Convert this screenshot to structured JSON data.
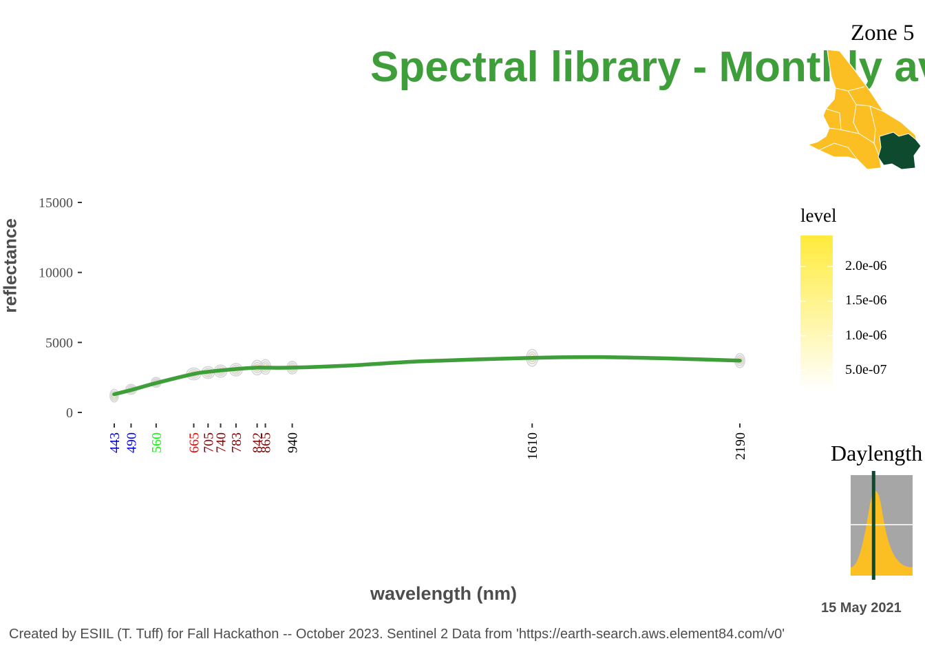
{
  "header": {
    "title": "Spectral library - Monthly av",
    "zone_label": "Zone 5"
  },
  "chart_data": {
    "type": "line",
    "title": "Spectral library - Monthly av",
    "xlabel": "wavelength (nm)",
    "ylabel": "reflectance",
    "ylim": [
      0,
      15000
    ],
    "y_ticks": [
      "0",
      "5000",
      "10000",
      "15000"
    ],
    "x_ticks": [
      {
        "label": "443",
        "value": 443,
        "color": "#0000cc"
      },
      {
        "label": "490",
        "value": 490,
        "color": "#0000ff"
      },
      {
        "label": "560",
        "value": 560,
        "color": "#00ff00"
      },
      {
        "label": "665",
        "value": 665,
        "color": "#ff0000"
      },
      {
        "label": "705",
        "value": 705,
        "color": "#8b0000"
      },
      {
        "label": "740",
        "value": 740,
        "color": "#8b0000"
      },
      {
        "label": "783",
        "value": 783,
        "color": "#8b0000"
      },
      {
        "label": "842",
        "value": 842,
        "color": "#8b0000"
      },
      {
        "label": "865",
        "value": 865,
        "color": "#8b0000"
      },
      {
        "label": "940",
        "value": 940,
        "color": "#000000"
      },
      {
        "label": "1610",
        "value": 1610,
        "color": "#000000"
      },
      {
        "label": "2190",
        "value": 2190,
        "color": "#000000"
      }
    ],
    "series": [
      {
        "color": "#3d9e3a",
        "x": [
          443,
          490,
          560,
          665,
          705,
          740,
          783,
          842,
          865,
          940,
          1100,
          1300,
          1610,
          1800,
          2000,
          2190
        ],
        "y": [
          1300,
          1600,
          2100,
          2750,
          2900,
          3000,
          3100,
          3200,
          3200,
          3200,
          3350,
          3650,
          3900,
          3950,
          3850,
          3700
        ]
      }
    ],
    "density_clusters": [
      {
        "x": 443,
        "y": 1200,
        "sx": 4,
        "sy": 450
      },
      {
        "x": 490,
        "y": 1650,
        "sx": 7,
        "sy": 350
      },
      {
        "x": 560,
        "y": 2150,
        "sx": 6,
        "sy": 350
      },
      {
        "x": 665,
        "y": 2750,
        "sx": 12,
        "sy": 420
      },
      {
        "x": 705,
        "y": 2850,
        "sx": 10,
        "sy": 420
      },
      {
        "x": 740,
        "y": 2950,
        "sx": 10,
        "sy": 430
      },
      {
        "x": 783,
        "y": 3050,
        "sx": 10,
        "sy": 440
      },
      {
        "x": 842,
        "y": 3200,
        "sx": 8,
        "sy": 520
      },
      {
        "x": 865,
        "y": 3250,
        "sx": 7,
        "sy": 520
      },
      {
        "x": 940,
        "y": 3200,
        "sx": 7,
        "sy": 450
      },
      {
        "x": 1610,
        "y": 3900,
        "sx": 8,
        "sy": 600
      },
      {
        "x": 2190,
        "y": 3700,
        "sx": 6,
        "sy": 500
      }
    ],
    "grid": false,
    "legend": {
      "title": "level",
      "position": "right",
      "ticks": [
        "2.0e-06",
        "1.5e-06",
        "1.0e-06",
        "5.0e-07"
      ],
      "tick_values": [
        2e-06,
        1.5e-06,
        1e-06,
        5e-07
      ],
      "range": [
        2e-07,
        2.45e-06
      ],
      "colors": [
        "#ffffff",
        "#ffeb3b"
      ]
    }
  },
  "inset_map": {
    "fill_color": "#fbbf24",
    "highlight_color": "#0d4a2e"
  },
  "daylength": {
    "title": "Daylength",
    "date_label": "15 May 2021",
    "background_color": "#a6a6a6",
    "fill_color": "#fbbf24",
    "marker_color": "#0d4a2e",
    "marker_position_fraction": 0.37
  },
  "footer": {
    "credit": "Created by ESIIL (T. Tuff) for Fall Hackathon -- October 2023. Sentinel 2 Data from 'https://earth-search.aws.element84.com/v0'"
  }
}
